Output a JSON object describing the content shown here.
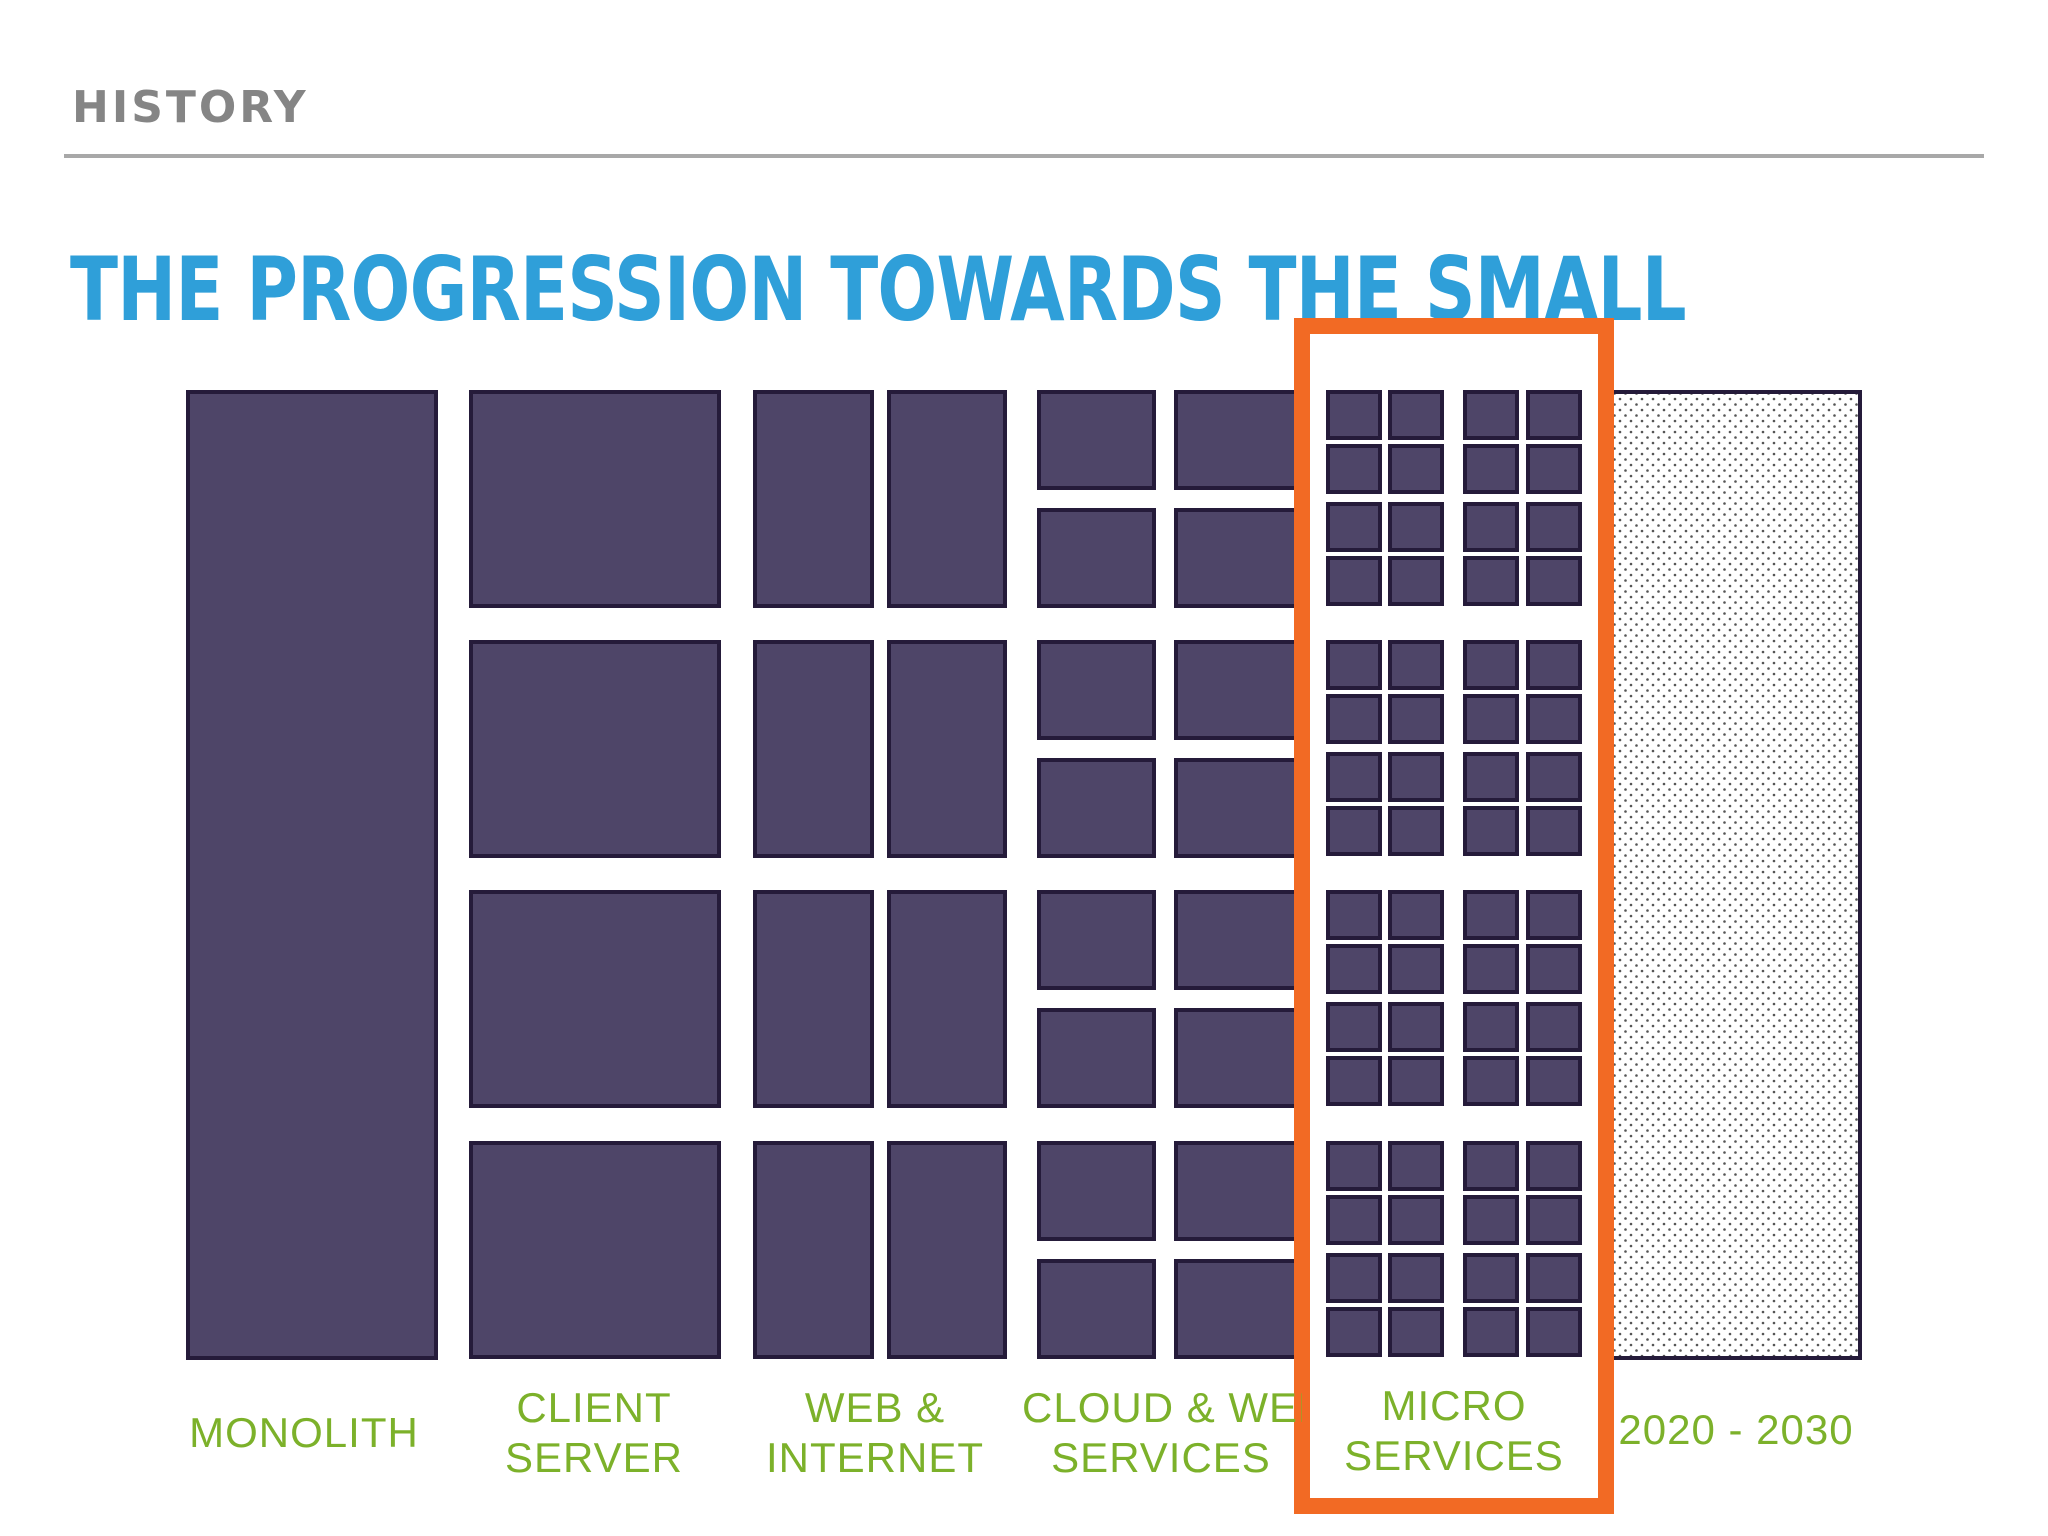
{
  "header": {
    "section": "HISTORY",
    "title": "THE PROGRESSION TOWARDS THE SMALL"
  },
  "eras": [
    {
      "id": "monolith",
      "line1": "",
      "line2": "MONOLITH"
    },
    {
      "id": "client-server",
      "line1": "CLIENT",
      "line2": "SERVER"
    },
    {
      "id": "web-internet",
      "line1": "WEB &",
      "line2": "INTERNET"
    },
    {
      "id": "cloud-web-services",
      "line1": "CLOUD & WEB",
      "line2": "SERVICES"
    },
    {
      "id": "micro-services",
      "line1": "MICRO",
      "line2": "SERVICES"
    },
    {
      "id": "future",
      "line1": "",
      "line2": "2020 - 2030"
    }
  ],
  "colors": {
    "block": "#4e4568",
    "block_border": "#251b3a",
    "highlight": "#f26a24",
    "caption": "#7cb12a",
    "title": "#2f9fd9"
  }
}
